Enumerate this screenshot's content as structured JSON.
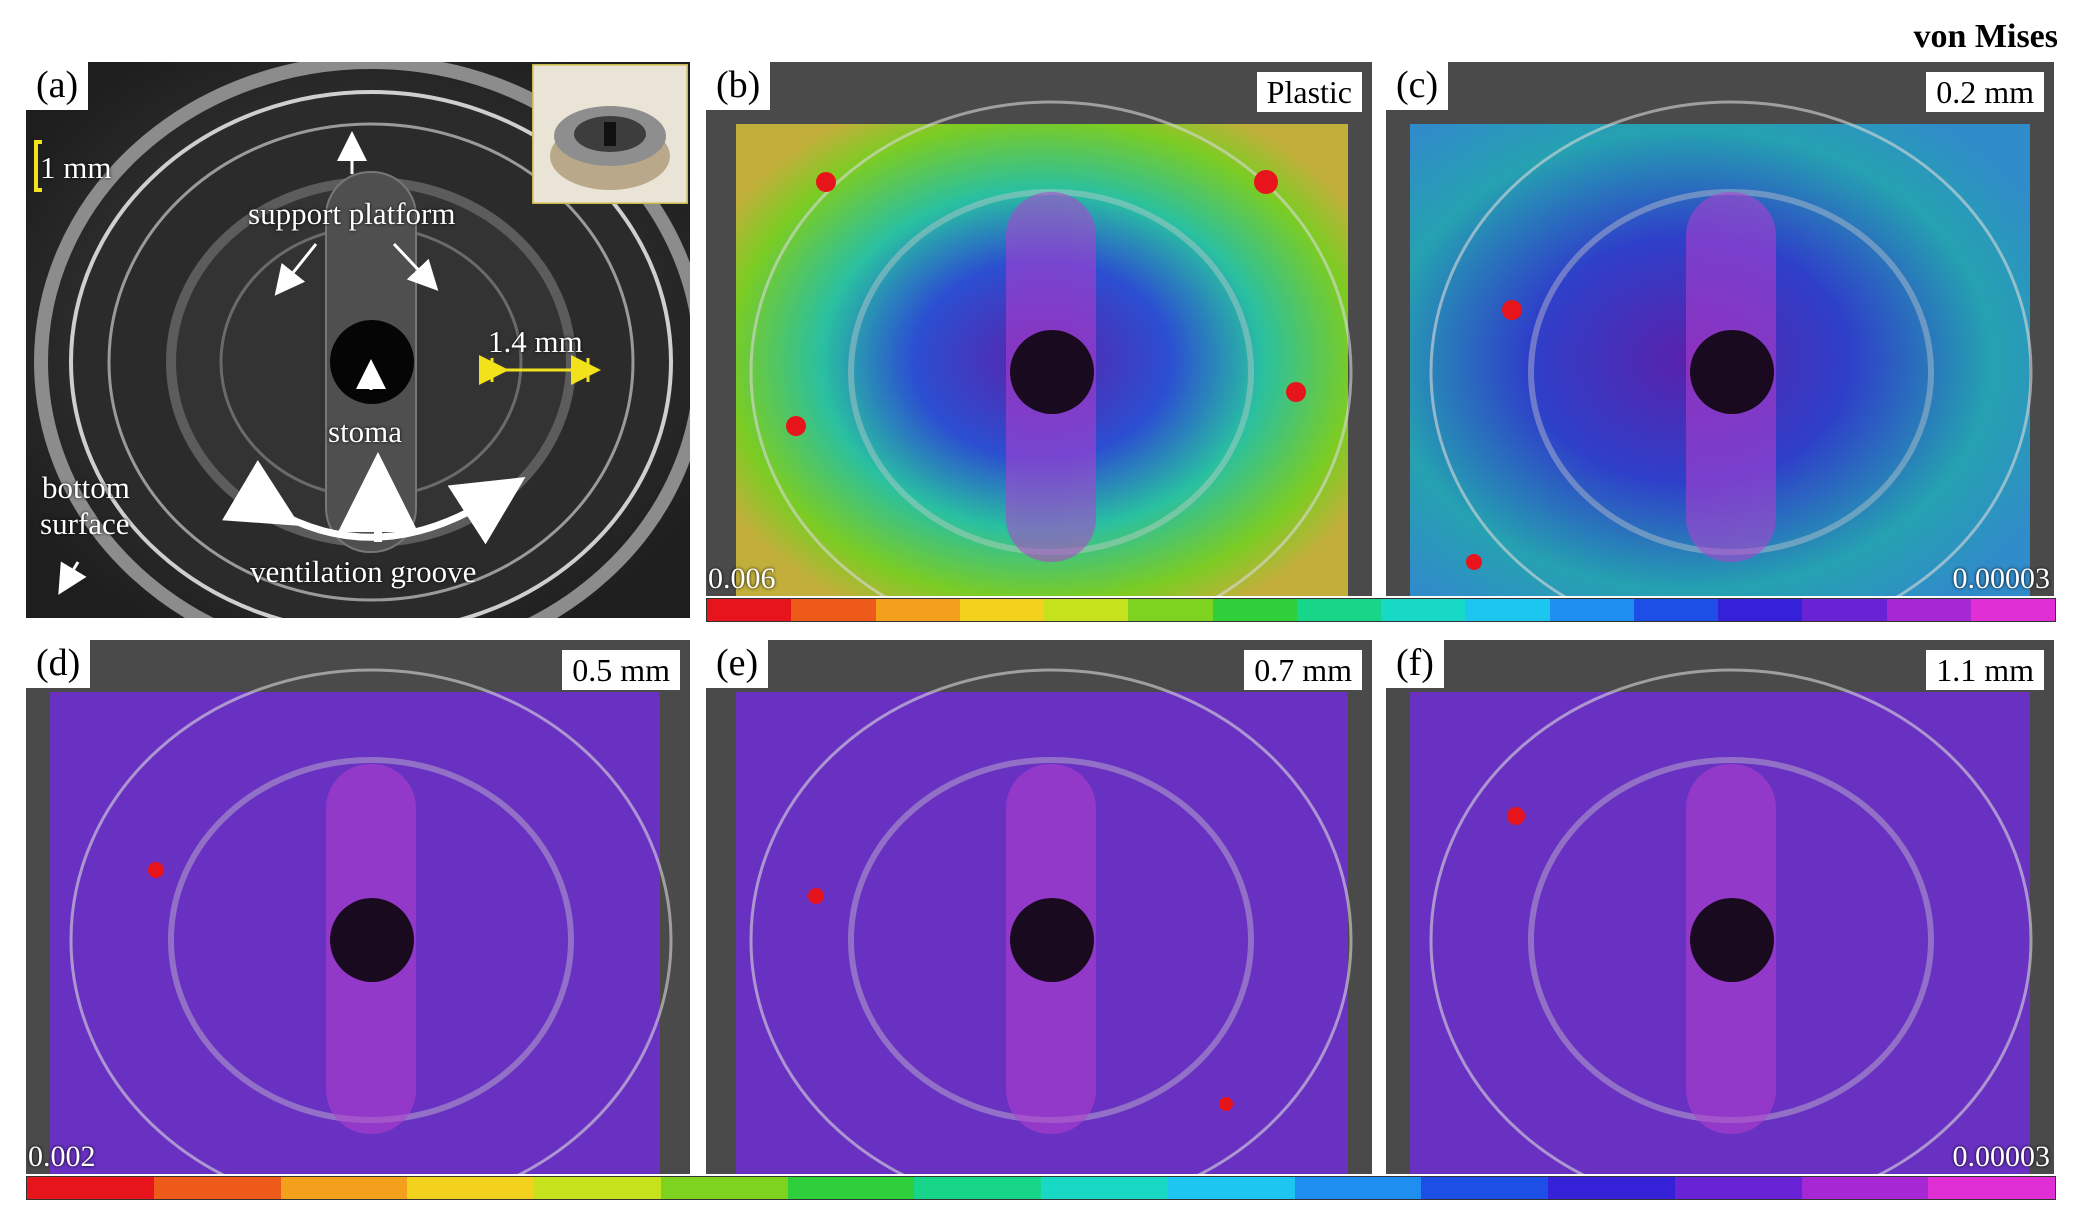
{
  "figure_title": "von Mises",
  "panel_a": {
    "label": "(a)",
    "scale": "1 mm",
    "dimension": "1.4 mm",
    "annotations": {
      "support_platform": "support platform",
      "stoma": "stoma",
      "bottom_surface_1": "bottom",
      "bottom_surface_2": "surface",
      "ventilation_groove": "ventilation groove"
    }
  },
  "panels": [
    {
      "label": "(b)",
      "tag": "Plastic",
      "min_label": "0.006"
    },
    {
      "label": "(c)",
      "tag": "0.2 mm",
      "max_label": "0.00003"
    },
    {
      "label": "(d)",
      "tag": "0.5 mm",
      "min_label": "0.002"
    },
    {
      "label": "(e)",
      "tag": "0.7 mm"
    },
    {
      "label": "(f)",
      "tag": "1.1 mm",
      "max_label": "0.00003"
    }
  ],
  "colorbar": {
    "colors": [
      "#e8141c",
      "#ee5a1a",
      "#f3a01c",
      "#f2d21c",
      "#c6e21c",
      "#7ed321",
      "#2ecf3a",
      "#17d68a",
      "#18d9c6",
      "#1cc6ee",
      "#1e8ff0",
      "#1d4fe6",
      "#3421d8",
      "#6a22d6",
      "#a627d4",
      "#e12fd6"
    ]
  },
  "colors": {
    "overlay_plastic": "#2fb6a6",
    "overlay_low": "#7a2fd0",
    "annotation_yellow": "#f2e21c"
  }
}
